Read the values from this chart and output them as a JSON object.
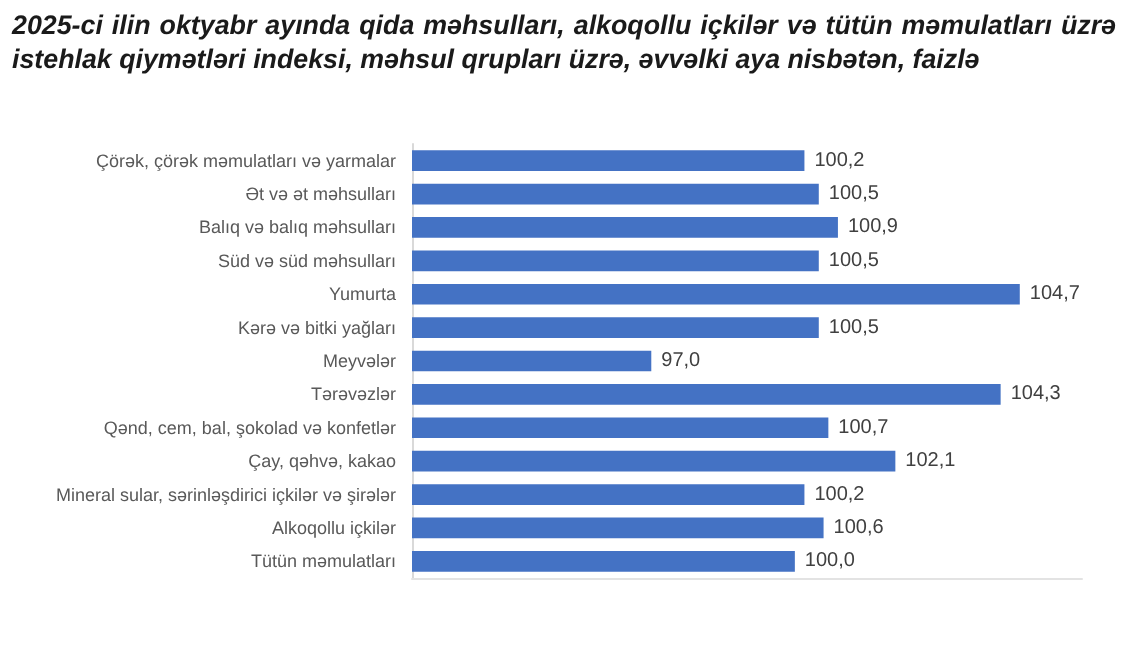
{
  "chart_data": {
    "type": "bar",
    "orientation": "horizontal",
    "title": "2025-ci ilin oktyabr ayında qida məhsulları, alkoqollu içkilər və tütün məmulatları üzrə istehlak qiymətləri indeksi, məhsul qrupları üzrə, əvvəlki aya nisbətən, faizlə",
    "categories": [
      "Çörək, çörək məmulatları və yarmalar",
      "Ət və ət məhsulları",
      "Balıq və balıq məhsulları",
      "Süd və süd məhsulları",
      "Yumurta",
      "Kərə və bitki yağları",
      "Meyvələr",
      "Tərəvəzlər",
      "Qənd, cem, bal, şokolad və konfetlər",
      "Çay, qəhvə, kakao",
      "Mineral sular, sərinləşdirici içkilər və şirələr",
      "Alkoqollu içkilər",
      "Tütün məmulatları"
    ],
    "values": [
      100.2,
      100.5,
      100.9,
      100.5,
      104.7,
      100.5,
      97.0,
      104.3,
      100.7,
      102.1,
      100.2,
      100.6,
      100.0
    ],
    "value_labels": [
      "100,2",
      "100,5",
      "100,9",
      "100,5",
      "104,7",
      "100,5",
      "97,0",
      "104,3",
      "100,7",
      "102,1",
      "100,2",
      "100,6",
      "100,0"
    ],
    "color": "#4472c4",
    "xlim": [
      92,
      106
    ]
  }
}
